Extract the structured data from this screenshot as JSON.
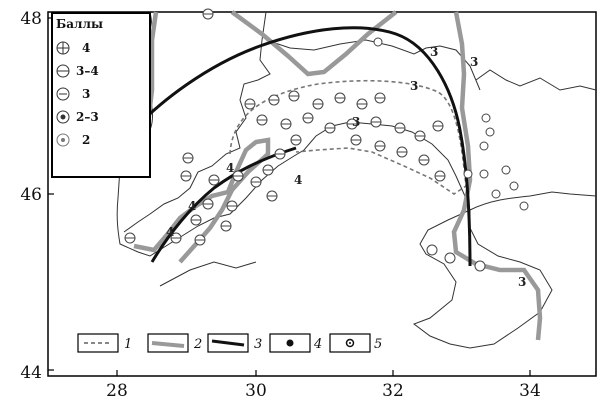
{
  "map": {
    "x_ticks": [
      "28",
      "30",
      "32",
      "34"
    ],
    "y_ticks": [
      "48",
      "46",
      "44"
    ],
    "iso_labels": [
      {
        "id": "a",
        "text": "3"
      },
      {
        "id": "b",
        "text": "3"
      },
      {
        "id": "c",
        "text": "3"
      },
      {
        "id": "d",
        "text": "3"
      },
      {
        "id": "e",
        "text": "3"
      },
      {
        "id": "f",
        "text": "3"
      },
      {
        "id": "g",
        "text": "4"
      },
      {
        "id": "h",
        "text": "4"
      },
      {
        "id": "i",
        "text": "4"
      },
      {
        "id": "j",
        "text": "4"
      }
    ]
  },
  "legend": {
    "title": "Баллы",
    "items": [
      {
        "symbol": "4",
        "label": "4"
      },
      {
        "symbol": "3-4",
        "label": "3–4"
      },
      {
        "symbol": "3",
        "label": "3"
      },
      {
        "symbol": "2-3",
        "label": "2–3"
      },
      {
        "symbol": "2",
        "label": "2"
      }
    ]
  },
  "bottom_legend": {
    "items": [
      {
        "label": "1",
        "kind": "dashed-line"
      },
      {
        "label": "2",
        "kind": "gray-thick-line"
      },
      {
        "label": "3",
        "kind": "black-thick-line"
      },
      {
        "label": "4",
        "kind": "filled-dot"
      },
      {
        "label": "5",
        "kind": "open-dot"
      }
    ]
  },
  "colors": {
    "isoseismal_gray": "#999999",
    "isoseismal_black": "#111111",
    "coast": "#333333",
    "frame": "#000000"
  }
}
